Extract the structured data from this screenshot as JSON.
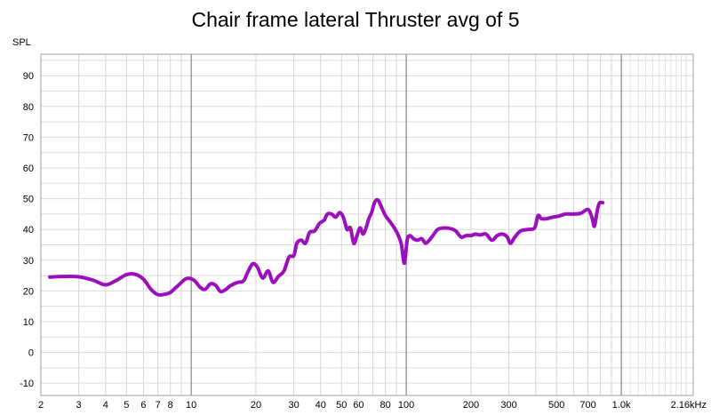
{
  "chart_data": {
    "type": "line",
    "title": "Chair frame lateral Thruster avg of 5",
    "ylabel": "SPL",
    "xscale": "log",
    "xlim": [
      2,
      2160
    ],
    "ylim": [
      -14,
      97
    ],
    "grid": true,
    "y_ticks": [
      90,
      80,
      70,
      60,
      50,
      40,
      30,
      20,
      10,
      0,
      -10
    ],
    "x_ticks": [
      {
        "value": 2,
        "label": "2"
      },
      {
        "value": 3,
        "label": "3"
      },
      {
        "value": 4,
        "label": "4"
      },
      {
        "value": 5,
        "label": "5"
      },
      {
        "value": 6,
        "label": "6"
      },
      {
        "value": 7,
        "label": "7"
      },
      {
        "value": 8,
        "label": "8"
      },
      {
        "value": 10,
        "label": "10"
      },
      {
        "value": 20,
        "label": "20"
      },
      {
        "value": 30,
        "label": "30"
      },
      {
        "value": 40,
        "label": "40"
      },
      {
        "value": 50,
        "label": "50"
      },
      {
        "value": 60,
        "label": "60"
      },
      {
        "value": 80,
        "label": "80"
      },
      {
        "value": 100,
        "label": "100"
      },
      {
        "value": 200,
        "label": "200"
      },
      {
        "value": 300,
        "label": "300"
      },
      {
        "value": 500,
        "label": "500"
      },
      {
        "value": 700,
        "label": "700"
      },
      {
        "value": 1000,
        "label": "1.0k"
      },
      {
        "value": 2160,
        "label": "2.16kHz"
      }
    ],
    "series": [
      {
        "color": "#9b0fbd",
        "points": [
          [
            2.2,
            24.5
          ],
          [
            2.5,
            24.7
          ],
          [
            3.0,
            24.6
          ],
          [
            3.5,
            23.5
          ],
          [
            4.0,
            22.0
          ],
          [
            4.5,
            23.5
          ],
          [
            5.0,
            25.3
          ],
          [
            5.5,
            25.4
          ],
          [
            6.0,
            23.8
          ],
          [
            6.5,
            20.5
          ],
          [
            7.0,
            18.8
          ],
          [
            7.5,
            18.9
          ],
          [
            8.0,
            19.5
          ],
          [
            8.7,
            21.8
          ],
          [
            9.5,
            24.0
          ],
          [
            10.3,
            23.5
          ],
          [
            11.0,
            21.2
          ],
          [
            11.6,
            20.5
          ],
          [
            12.3,
            22.3
          ],
          [
            13.0,
            21.8
          ],
          [
            13.7,
            19.8
          ],
          [
            14.5,
            20.5
          ],
          [
            15.3,
            21.8
          ],
          [
            16.5,
            22.8
          ],
          [
            17.5,
            23.2
          ],
          [
            18.3,
            26.0
          ],
          [
            19.3,
            28.8
          ],
          [
            20.3,
            27.8
          ],
          [
            21.5,
            24.2
          ],
          [
            22.8,
            26.5
          ],
          [
            24.0,
            22.8
          ],
          [
            25.5,
            24.8
          ],
          [
            27.0,
            26.5
          ],
          [
            28.5,
            31.0
          ],
          [
            30.0,
            31.5
          ],
          [
            31.0,
            35.5
          ],
          [
            32.5,
            36.5
          ],
          [
            34.0,
            35.5
          ],
          [
            35.5,
            39.0
          ],
          [
            37.5,
            39.5
          ],
          [
            39.5,
            42.0
          ],
          [
            41.5,
            43.0
          ],
          [
            43.0,
            45.0
          ],
          [
            45.0,
            45.0
          ],
          [
            47.0,
            44.0
          ],
          [
            49.0,
            45.5
          ],
          [
            51.0,
            44.0
          ],
          [
            53.0,
            40.0
          ],
          [
            55.0,
            40.5
          ],
          [
            57.0,
            35.5
          ],
          [
            59.0,
            38.0
          ],
          [
            61.0,
            40.5
          ],
          [
            63.0,
            38.5
          ],
          [
            65.0,
            40.5
          ],
          [
            67.0,
            43.5
          ],
          [
            69.0,
            45.5
          ],
          [
            71.5,
            49.0
          ],
          [
            74.0,
            49.5
          ],
          [
            77.0,
            47.0
          ],
          [
            80.0,
            44.5
          ],
          [
            84.0,
            42.5
          ],
          [
            88.0,
            40.5
          ],
          [
            92.0,
            38.0
          ],
          [
            95.0,
            35.0
          ],
          [
            98.0,
            29.0
          ],
          [
            101.0,
            36.5
          ],
          [
            104.0,
            38.0
          ],
          [
            108.0,
            37.0
          ],
          [
            113.0,
            36.5
          ],
          [
            118.0,
            37.0
          ],
          [
            123.0,
            35.5
          ],
          [
            128.0,
            36.5
          ],
          [
            133.0,
            38.0
          ],
          [
            140.0,
            40.0
          ],
          [
            150.0,
            40.5
          ],
          [
            160.0,
            40.3
          ],
          [
            170.0,
            39.5
          ],
          [
            180.0,
            37.5
          ],
          [
            190.0,
            38.0
          ],
          [
            200.0,
            38.0
          ],
          [
            210.0,
            38.5
          ],
          [
            220.0,
            38.2
          ],
          [
            235.0,
            38.5
          ],
          [
            250.0,
            36.5
          ],
          [
            265.0,
            38.0
          ],
          [
            280.0,
            38.5
          ],
          [
            295.0,
            37.5
          ],
          [
            305.0,
            35.5
          ],
          [
            320.0,
            37.5
          ],
          [
            340.0,
            39.5
          ],
          [
            370.0,
            40.0
          ],
          [
            395.0,
            40.5
          ],
          [
            410.0,
            44.5
          ],
          [
            425.0,
            43.5
          ],
          [
            450.0,
            43.5
          ],
          [
            480.0,
            44.0
          ],
          [
            510.0,
            44.3
          ],
          [
            550.0,
            45.0
          ],
          [
            600.0,
            45.0
          ],
          [
            650.0,
            45.3
          ],
          [
            700.0,
            46.5
          ],
          [
            730.0,
            44.0
          ],
          [
            750.0,
            41.0
          ],
          [
            770.0,
            45.5
          ],
          [
            790.0,
            48.5
          ],
          [
            820.0,
            48.7
          ]
        ]
      }
    ]
  }
}
